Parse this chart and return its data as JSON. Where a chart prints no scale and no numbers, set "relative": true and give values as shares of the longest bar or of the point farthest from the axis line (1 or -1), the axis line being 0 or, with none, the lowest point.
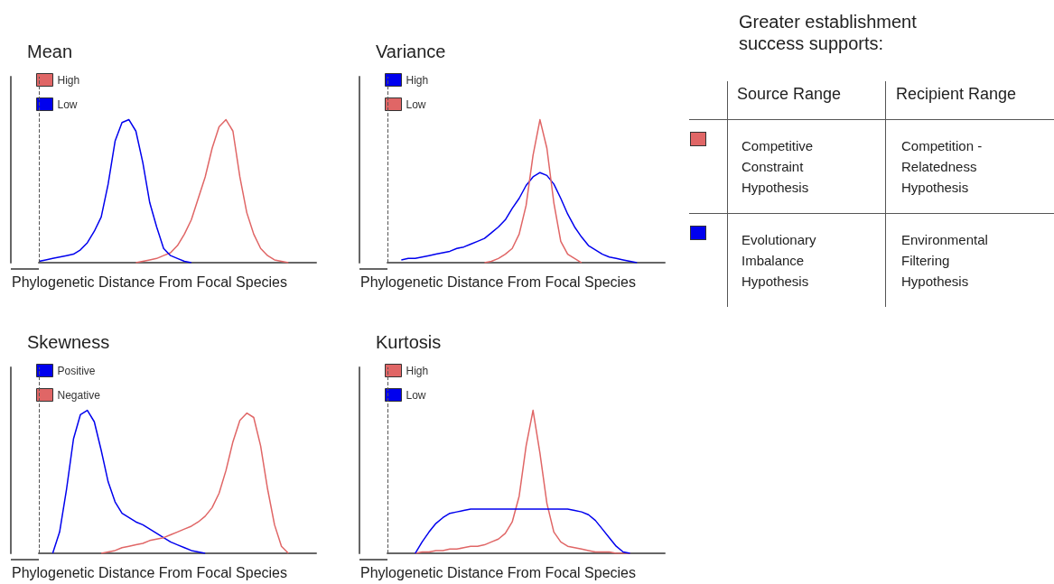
{
  "chart_data": [
    {
      "type": "line",
      "title": "Mean",
      "xlabel": "Phylogenetic Distance From Focal Species",
      "relative": true,
      "grid": false,
      "legend": "top left",
      "marker": "none",
      "categories": [
        null,
        null,
        null,
        null,
        null,
        null,
        null,
        null,
        null,
        null,
        null,
        null,
        null,
        null,
        null,
        null,
        null,
        null,
        null,
        null,
        null,
        null,
        null,
        null,
        null,
        null,
        null,
        null,
        null,
        null,
        null,
        null,
        null,
        null,
        null,
        null,
        null,
        null,
        null,
        null,
        null
      ],
      "ref_lines": [
        {
          "axis": "x",
          "color": "#555555",
          "line_style": "dashed"
        }
      ],
      "series": [
        {
          "name": "High",
          "color": "#e06666",
          "values": [
            null,
            null,
            null,
            null,
            null,
            null,
            null,
            null,
            null,
            null,
            null,
            null,
            null,
            null,
            0,
            0.01,
            0.02,
            0.03,
            0.05,
            0.07,
            0.12,
            0.2,
            0.3,
            0.45,
            0.6,
            0.8,
            0.95,
            1,
            0.92,
            0.6,
            0.35,
            0.2,
            0.1,
            0.05,
            0.02,
            0.01,
            0,
            null,
            null,
            null,
            null
          ]
        },
        {
          "name": "Low",
          "color": "#0000ee",
          "values": [
            0.01,
            0.02,
            0.03,
            0.04,
            0.05,
            0.06,
            0.09,
            0.14,
            0.22,
            0.32,
            0.55,
            0.85,
            0.98,
            1,
            0.92,
            0.7,
            0.42,
            0.25,
            0.1,
            0.05,
            0.03,
            0.01,
            0,
            null,
            null,
            null,
            null,
            null,
            null,
            null,
            null,
            null,
            null,
            null,
            null,
            null,
            null,
            null,
            null,
            null,
            null
          ]
        }
      ]
    },
    {
      "type": "line",
      "title": "Variance",
      "xlabel": "Phylogenetic Distance From Focal Species",
      "relative": true,
      "grid": false,
      "legend": "top left",
      "marker": "none",
      "categories": [
        null,
        null,
        null,
        null,
        null,
        null,
        null,
        null,
        null,
        null,
        null,
        null,
        null,
        null,
        null,
        null,
        null,
        null,
        null,
        null,
        null,
        null,
        null,
        null,
        null,
        null,
        null,
        null,
        null,
        null,
        null,
        null,
        null,
        null,
        null,
        null,
        null,
        null,
        null,
        null,
        null
      ],
      "ref_lines": [
        {
          "axis": "x",
          "color": "#555555",
          "line_style": "dashed"
        }
      ],
      "series": [
        {
          "name": "High",
          "color": "#0000ee",
          "values": [
            null,
            null,
            0.02,
            0.03,
            0.03,
            0.04,
            0.05,
            0.06,
            0.07,
            0.08,
            0.1,
            0.11,
            0.13,
            0.15,
            0.17,
            0.21,
            0.25,
            0.3,
            0.38,
            0.45,
            0.54,
            0.6,
            0.63,
            0.61,
            0.55,
            0.45,
            0.34,
            0.25,
            0.18,
            0.12,
            0.09,
            0.06,
            0.04,
            0.03,
            0.02,
            0.01,
            0,
            null,
            null,
            null,
            null
          ]
        },
        {
          "name": "Low",
          "color": "#e06666",
          "values": [
            null,
            null,
            null,
            null,
            null,
            null,
            null,
            null,
            null,
            null,
            null,
            null,
            null,
            null,
            0,
            0.01,
            0.03,
            0.06,
            0.1,
            0.2,
            0.4,
            0.75,
            1,
            0.8,
            0.42,
            0.15,
            0.06,
            0.03,
            0,
            null,
            null,
            null,
            null,
            null,
            null,
            null,
            null,
            null,
            null,
            null,
            null
          ]
        }
      ]
    },
    {
      "type": "line",
      "title": "Skewness",
      "xlabel": "Phylogenetic Distance From Focal Species",
      "relative": true,
      "grid": false,
      "legend": "top left",
      "marker": "none",
      "categories": [
        null,
        null,
        null,
        null,
        null,
        null,
        null,
        null,
        null,
        null,
        null,
        null,
        null,
        null,
        null,
        null,
        null,
        null,
        null,
        null,
        null,
        null,
        null,
        null,
        null,
        null,
        null,
        null,
        null,
        null,
        null,
        null,
        null,
        null,
        null,
        null,
        null,
        null,
        null,
        null,
        null
      ],
      "ref_lines": [
        {
          "axis": "x",
          "color": "#555555",
          "line_style": "dashed"
        }
      ],
      "series": [
        {
          "name": "Positive",
          "color": "#0000ee",
          "values": [
            null,
            null,
            0,
            0.15,
            0.45,
            0.8,
            0.97,
            1,
            0.92,
            0.72,
            0.5,
            0.36,
            0.28,
            0.25,
            0.22,
            0.2,
            0.17,
            0.14,
            0.11,
            0.08,
            0.06,
            0.04,
            0.02,
            0.01,
            0,
            null,
            null,
            null,
            null,
            null,
            null,
            null,
            null,
            null,
            null,
            null,
            null,
            null,
            null,
            null,
            null
          ]
        },
        {
          "name": "Negative",
          "color": "#e06666",
          "values": [
            null,
            null,
            null,
            null,
            null,
            null,
            null,
            null,
            null,
            0,
            0.01,
            0.02,
            0.04,
            0.05,
            0.06,
            0.07,
            0.09,
            0.1,
            0.11,
            0.13,
            0.15,
            0.17,
            0.19,
            0.22,
            0.26,
            0.32,
            0.42,
            0.58,
            0.78,
            0.93,
            0.98,
            0.95,
            0.75,
            0.45,
            0.2,
            0.05,
            0,
            null,
            null,
            null,
            null
          ]
        }
      ]
    },
    {
      "type": "line",
      "title": "Kurtosis",
      "xlabel": "Phylogenetic Distance From Focal Species",
      "relative": true,
      "grid": false,
      "legend": "top left",
      "marker": "none",
      "categories": [
        null,
        null,
        null,
        null,
        null,
        null,
        null,
        null,
        null,
        null,
        null,
        null,
        null,
        null,
        null,
        null,
        null,
        null,
        null,
        null,
        null,
        null,
        null,
        null,
        null,
        null,
        null,
        null,
        null,
        null,
        null,
        null,
        null,
        null,
        null,
        null,
        null,
        null,
        null,
        null,
        null
      ],
      "ref_lines": [
        {
          "axis": "x",
          "color": "#555555",
          "line_style": "dashed"
        }
      ],
      "series": [
        {
          "name": "High",
          "color": "#e06666",
          "values": [
            null,
            null,
            null,
            null,
            0,
            0.01,
            0.01,
            0.02,
            0.02,
            0.03,
            0.03,
            0.04,
            0.05,
            0.05,
            0.06,
            0.08,
            0.1,
            0.14,
            0.22,
            0.4,
            0.75,
            1,
            0.7,
            0.35,
            0.15,
            0.08,
            0.05,
            0.04,
            0.03,
            0.02,
            0.01,
            0.01,
            0.01,
            0,
            0,
            0,
            null,
            null,
            null,
            null,
            null
          ]
        },
        {
          "name": "Low",
          "color": "#0000ee",
          "values": [
            null,
            null,
            null,
            null,
            0,
            0.08,
            0.15,
            0.21,
            0.25,
            0.28,
            0.29,
            0.3,
            0.31,
            0.31,
            0.31,
            0.31,
            0.31,
            0.31,
            0.31,
            0.31,
            0.31,
            0.31,
            0.31,
            0.31,
            0.31,
            0.31,
            0.31,
            0.3,
            0.29,
            0.27,
            0.23,
            0.17,
            0.11,
            0.05,
            0.01,
            0,
            null,
            null,
            null,
            null,
            null
          ]
        }
      ]
    },
    {
      "type": "other",
      "title": "Greater establishment success supports:",
      "colors": [
        "#e06666",
        "#0000ee"
      ],
      "annotations": [
        "Source Range",
        "Recipient Range",
        "Competitive Constraint Hypothesis",
        "Competition - Relatedness Hypothesis",
        "Evolutionary Imbalance Hypothesis",
        "Environmental Filtering Hypothesis"
      ]
    }
  ]
}
